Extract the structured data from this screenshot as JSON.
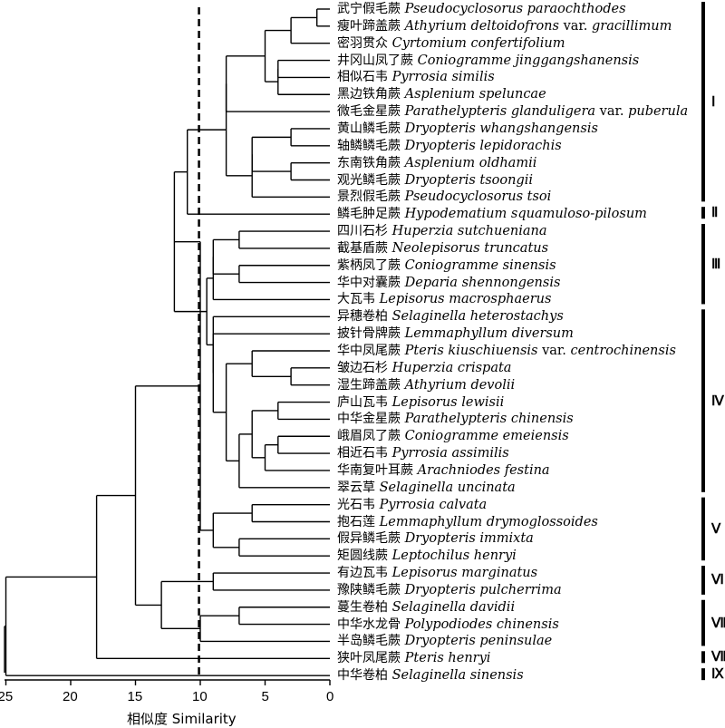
{
  "x_axis": {
    "title": "相似度 Similarity",
    "ticks": [
      "25",
      "20",
      "15",
      "10",
      "5",
      "0"
    ],
    "tick_values": [
      25,
      20,
      15,
      10,
      5,
      0
    ],
    "range": [
      26,
      0
    ]
  },
  "threshold": 10.1,
  "leaves": [
    {
      "zh": "武宁假毛蕨",
      "lat": "Pseudocyclosorus paraochthodes",
      "var": "",
      "lat2": ""
    },
    {
      "zh": "瘦叶蹄盖蕨",
      "lat": "Athyrium deltoidofrons",
      "var": "var.",
      "lat2": "gracillimum"
    },
    {
      "zh": "密羽贯众",
      "lat": "Cyrtomium confertifolium",
      "var": "",
      "lat2": ""
    },
    {
      "zh": "井冈山凤了蕨",
      "lat": "Coniogramme jinggangshanensis",
      "var": "",
      "lat2": ""
    },
    {
      "zh": "相似石韦",
      "lat": "Pyrrosia similis",
      "var": "",
      "lat2": ""
    },
    {
      "zh": "黑边铁角蕨",
      "lat": "Asplenium speluncae",
      "var": "",
      "lat2": ""
    },
    {
      "zh": "微毛金星蕨",
      "lat": "Parathelypteris glanduligera",
      "var": "var.",
      "lat2": "puberula"
    },
    {
      "zh": "黄山鳞毛蕨",
      "lat": "Dryopteris whangshangensis",
      "var": "",
      "lat2": ""
    },
    {
      "zh": "轴鳞鳞毛蕨",
      "lat": "Dryopteris lepidorachis",
      "var": "",
      "lat2": ""
    },
    {
      "zh": "东南铁角蕨",
      "lat": "Asplenium oldhamii",
      "var": "",
      "lat2": ""
    },
    {
      "zh": "观光鳞毛蕨",
      "lat": "Dryopteris tsoongii",
      "var": "",
      "lat2": ""
    },
    {
      "zh": "景烈假毛蕨",
      "lat": "Pseudocyclosorus tsoi",
      "var": "",
      "lat2": ""
    },
    {
      "zh": "鳞毛肿足蕨",
      "lat": "Hypodematium squamuloso-pilosum",
      "var": "",
      "lat2": ""
    },
    {
      "zh": "四川石杉",
      "lat": "Huperzia sutchueniana",
      "var": "",
      "lat2": ""
    },
    {
      "zh": "截基盾蕨",
      "lat": "Neolepisorus truncatus",
      "var": "",
      "lat2": ""
    },
    {
      "zh": "紫柄凤了蕨",
      "lat": "Coniogramme sinensis",
      "var": "",
      "lat2": ""
    },
    {
      "zh": "华中对囊蕨",
      "lat": "Deparia shennongensis",
      "var": "",
      "lat2": ""
    },
    {
      "zh": "大瓦韦",
      "lat": "Lepisorus macrosphaerus",
      "var": "",
      "lat2": ""
    },
    {
      "zh": "异穗卷柏",
      "lat": "Selaginella heterostachys",
      "var": "",
      "lat2": ""
    },
    {
      "zh": "披针骨牌蕨",
      "lat": "Lemmaphyllum diversum",
      "var": "",
      "lat2": ""
    },
    {
      "zh": "华中凤尾蕨",
      "lat": "Pteris kiuschiuensis",
      "var": "var.",
      "lat2": "centrochinensis"
    },
    {
      "zh": "皱边石杉",
      "lat": "Huperzia crispata",
      "var": "",
      "lat2": ""
    },
    {
      "zh": "湿生蹄盖蕨",
      "lat": "Athyrium devolii",
      "var": "",
      "lat2": ""
    },
    {
      "zh": "庐山瓦韦",
      "lat": "Lepisorus lewisii",
      "var": "",
      "lat2": ""
    },
    {
      "zh": "中华金星蕨",
      "lat": "Parathelypteris chinensis",
      "var": "",
      "lat2": ""
    },
    {
      "zh": "峨眉凤了蕨",
      "lat": "Coniogramme emeiensis",
      "var": "",
      "lat2": ""
    },
    {
      "zh": "相近石韦",
      "lat": "Pyrrosia assimilis",
      "var": "",
      "lat2": ""
    },
    {
      "zh": "华南复叶耳蕨",
      "lat": "Arachniodes festina",
      "var": "",
      "lat2": ""
    },
    {
      "zh": "翠云草",
      "lat": "Selaginella uncinata",
      "var": "",
      "lat2": ""
    },
    {
      "zh": "光石韦",
      "lat": "Pyrrosia calvata",
      "var": "",
      "lat2": ""
    },
    {
      "zh": "抱石莲",
      "lat": "Lemmaphyllum drymoglossoides",
      "var": "",
      "lat2": ""
    },
    {
      "zh": "假异鳞毛蕨",
      "lat": "Dryopteris immixta",
      "var": "",
      "lat2": ""
    },
    {
      "zh": "矩圆线蕨",
      "lat": "Leptochilus henryi",
      "var": "",
      "lat2": ""
    },
    {
      "zh": "有边瓦韦",
      "lat": "Lepisorus marginatus",
      "var": "",
      "lat2": ""
    },
    {
      "zh": "豫陕鳞毛蕨",
      "lat": "Dryopteris pulcherrima",
      "var": "",
      "lat2": ""
    },
    {
      "zh": "蔓生卷柏",
      "lat": "Selaginella davidii",
      "var": "",
      "lat2": ""
    },
    {
      "zh": "中华水龙骨",
      "lat": "Polypodiodes chinensis",
      "var": "",
      "lat2": ""
    },
    {
      "zh": "半岛鳞毛蕨",
      "lat": "Dryopteris peninsulae",
      "var": "",
      "lat2": ""
    },
    {
      "zh": "狭叶凤尾蕨",
      "lat": "Pteris henryi",
      "var": "",
      "lat2": ""
    },
    {
      "zh": "中华卷柏",
      "lat": "Selaginella sinensis",
      "var": "",
      "lat2": ""
    }
  ],
  "clusters": [
    {
      "label": "Ⅰ",
      "first": 0,
      "last": 11
    },
    {
      "label": "Ⅱ",
      "first": 12,
      "last": 12
    },
    {
      "label": "Ⅲ",
      "first": 13,
      "last": 17
    },
    {
      "label": "Ⅳ",
      "first": 18,
      "last": 28
    },
    {
      "label": "Ⅴ",
      "first": 29,
      "last": 32
    },
    {
      "label": "Ⅵ",
      "first": 33,
      "last": 34
    },
    {
      "label": "Ⅶ",
      "first": 35,
      "last": 37
    },
    {
      "label": "Ⅷ",
      "first": 38,
      "last": 38
    },
    {
      "label": "Ⅸ",
      "first": 39,
      "last": 39
    }
  ],
  "merges": [
    {
      "id": "n1",
      "a": "L0",
      "b": "L1",
      "h": 1.0
    },
    {
      "id": "n2",
      "a": "n1",
      "b": "L2",
      "h": 3.0
    },
    {
      "id": "n3",
      "a": "L3",
      "b": "L4",
      "h": 4.0
    },
    {
      "id": "n4",
      "a": "n3",
      "b": "L5",
      "h": 4.0
    },
    {
      "id": "n5",
      "a": "n2",
      "b": "n4",
      "h": 5.0
    },
    {
      "id": "n6",
      "a": "n5",
      "b": "L6",
      "h": 8.0
    },
    {
      "id": "n7",
      "a": "L7",
      "b": "L8",
      "h": 3.0
    },
    {
      "id": "n8",
      "a": "L9",
      "b": "L10",
      "h": 3.0
    },
    {
      "id": "n9",
      "a": "n7",
      "b": "n8",
      "h": 6.0
    },
    {
      "id": "n10",
      "a": "n9",
      "b": "L11",
      "h": 6.0
    },
    {
      "id": "n11",
      "a": "n6",
      "b": "n10",
      "h": 8.0
    },
    {
      "id": "n12",
      "a": "n11",
      "b": "L12",
      "h": 11.0
    },
    {
      "id": "n13",
      "a": "L13",
      "b": "L14",
      "h": 7.0
    },
    {
      "id": "n14",
      "a": "L15",
      "b": "L16",
      "h": 7.0
    },
    {
      "id": "n15",
      "a": "n13",
      "b": "n14",
      "h": 9.0
    },
    {
      "id": "n16",
      "a": "n15",
      "b": "L17",
      "h": 9.0
    },
    {
      "id": "n17",
      "a": "L21",
      "b": "L22",
      "h": 3.0
    },
    {
      "id": "n18",
      "a": "L20",
      "b": "n17",
      "h": 6.0
    },
    {
      "id": "n19",
      "a": "L23",
      "b": "L24",
      "h": 4.0
    },
    {
      "id": "n20",
      "a": "L25",
      "b": "L26",
      "h": 4.0
    },
    {
      "id": "n21",
      "a": "n20",
      "b": "L27",
      "h": 5.0
    },
    {
      "id": "n22",
      "a": "n19",
      "b": "n21",
      "h": 6.0
    },
    {
      "id": "n23",
      "a": "n22",
      "b": "L28",
      "h": 7.0
    },
    {
      "id": "n24",
      "a": "n18",
      "b": "n23",
      "h": 8.0
    },
    {
      "id": "n25",
      "a": "L19",
      "b": "n24",
      "h": 9.0
    },
    {
      "id": "n26",
      "a": "L18",
      "b": "n25",
      "h": 9.0
    },
    {
      "id": "n27",
      "a": "n16",
      "b": "n26",
      "h": 9.5
    },
    {
      "id": "n28",
      "a": "n12",
      "b": "n27",
      "h": 12.0
    },
    {
      "id": "n29",
      "a": "L29",
      "b": "L30",
      "h": 6.0
    },
    {
      "id": "n30",
      "a": "L31",
      "b": "L32",
      "h": 7.0
    },
    {
      "id": "n31",
      "a": "n29",
      "b": "n30",
      "h": 9.0
    },
    {
      "id": "n32",
      "a": "n28",
      "b": "n31",
      "h": 10.0
    },
    {
      "id": "n33",
      "a": "L33",
      "b": "L34",
      "h": 9.0
    },
    {
      "id": "n34",
      "a": "L35",
      "b": "L36",
      "h": 7.0
    },
    {
      "id": "n35",
      "a": "n34",
      "b": "L37",
      "h": 10.0
    },
    {
      "id": "n36",
      "a": "n33",
      "b": "n35",
      "h": 13.0
    },
    {
      "id": "n37",
      "a": "n32",
      "b": "n36",
      "h": 15.0
    },
    {
      "id": "n38",
      "a": "n37",
      "b": "L38",
      "h": 18.0
    },
    {
      "id": "n39",
      "a": "n38",
      "b": "L39",
      "h": 25.0
    }
  ]
}
